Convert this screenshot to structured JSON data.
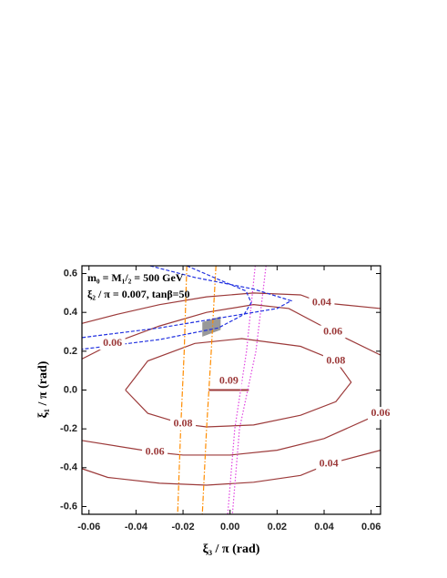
{
  "chart_data": {
    "type": "contour",
    "xlabel": "ξ₃ / π (rad)",
    "ylabel": "ξ₁ / π (rad)",
    "annotations": [
      "m₀ = M₁/₂ = 500 GeV",
      "ξ₂ / π = 0.007, tanβ=50"
    ],
    "xlim": [
      -0.063,
      0.064
    ],
    "ylim": [
      -0.64,
      0.64
    ],
    "xticks": [
      -0.06,
      -0.04,
      -0.02,
      {
        "value": 0,
        "label": "0.00"
      },
      0.02,
      0.04,
      0.06
    ],
    "yticks": [
      -0.6,
      -0.4,
      -0.2,
      {
        "value": 0,
        "label": "0.0"
      },
      0.2,
      0.4,
      0.6
    ],
    "contour_color": "#9c3a3a",
    "contours": [
      {
        "level": 0.04,
        "x": [
          -0.063,
          -0.048,
          -0.03,
          -0.01,
          0.01,
          0.03,
          0.039,
          0.064
        ],
        "y": [
          0.343,
          0.39,
          0.44,
          0.48,
          0.5,
          0.49,
          0.45,
          0.42
        ]
      },
      {
        "level": 0.06,
        "x": [
          -0.063,
          -0.05,
          -0.03,
          -0.01,
          0.01,
          0.025,
          0.0437,
          0.064
        ],
        "y": [
          0.16,
          0.24,
          0.33,
          0.4,
          0.44,
          0.42,
          0.3,
          0.18
        ]
      },
      {
        "level": 0.08,
        "x": [
          -0.0445,
          -0.035,
          -0.015,
          0.005,
          0.03,
          0.045,
          0.0515,
          0.045,
          0.03,
          0.01,
          -0.01,
          -0.02,
          -0.035,
          -0.0445
        ],
        "y": [
          0,
          0.15,
          0.24,
          0.265,
          0.225,
          0.15,
          0.04,
          -0.06,
          -0.13,
          -0.18,
          -0.19,
          -0.175,
          -0.12,
          0
        ]
      },
      {
        "level": 0.09,
        "x": [
          -0.009,
          0.008
        ],
        "y": [
          0,
          0
        ]
      },
      {
        "level": 0.06,
        "x": [
          -0.063,
          -0.032,
          -0.02,
          0,
          0.02,
          0.04,
          0.064
        ],
        "y": [
          -0.26,
          -0.32,
          -0.335,
          -0.335,
          -0.31,
          -0.25,
          -0.12
        ]
      },
      {
        "level": 0.04,
        "x": [
          -0.063,
          -0.052,
          -0.03,
          -0.01,
          0.01,
          0.03,
          0.042,
          0.064
        ],
        "y": [
          -0.405,
          -0.45,
          -0.48,
          -0.49,
          -0.475,
          -0.44,
          -0.38,
          -0.31
        ]
      }
    ],
    "curves": [
      {
        "color": "#ff8c00",
        "style": "dashdot",
        "x": [
          -0.0184,
          -0.0195,
          -0.021,
          -0.0223
        ],
        "y": [
          0.64,
          0.2,
          -0.2,
          -0.64
        ]
      },
      {
        "color": "#ff8c00",
        "style": "dashdot",
        "x": [
          -0.006,
          -0.008,
          -0.01,
          -0.0118
        ],
        "y": [
          0.64,
          0.2,
          -0.2,
          -0.64
        ]
      },
      {
        "color": "#e040e0",
        "style": "dotted",
        "x": [
          0.0107,
          0.007,
          0.002,
          -0.001
        ],
        "y": [
          0.64,
          0.2,
          -0.2,
          -0.64
        ]
      },
      {
        "color": "#e040e0",
        "style": "dotted",
        "x": [
          0.0153,
          0.011,
          0.004,
          0.001
        ],
        "y": [
          0.64,
          0.2,
          -0.2,
          -0.64
        ]
      },
      {
        "color": "#2030e0",
        "style": "dashed",
        "x": [
          -0.034,
          -0.015,
          0.01,
          0.026,
          0.02,
          0,
          -0.03,
          -0.063
        ],
        "y": [
          0.64,
          0.58,
          0.52,
          0.46,
          0.42,
          0.38,
          0.32,
          0.27
        ]
      },
      {
        "color": "#2030e0",
        "style": "dashed",
        "x": [
          -0.0184,
          -0.005,
          0.0068,
          0.009,
          0.006,
          -0.005,
          -0.03,
          -0.063
        ],
        "y": [
          0.64,
          0.57,
          0.51,
          0.45,
          0.39,
          0.32,
          0.26,
          0.21
        ]
      }
    ],
    "region": {
      "color": "#999999",
      "x": [
        -0.0118,
        -0.004,
        -0.004,
        -0.0118
      ],
      "y": [
        0.35,
        0.38,
        0.31,
        0.275
      ]
    }
  }
}
